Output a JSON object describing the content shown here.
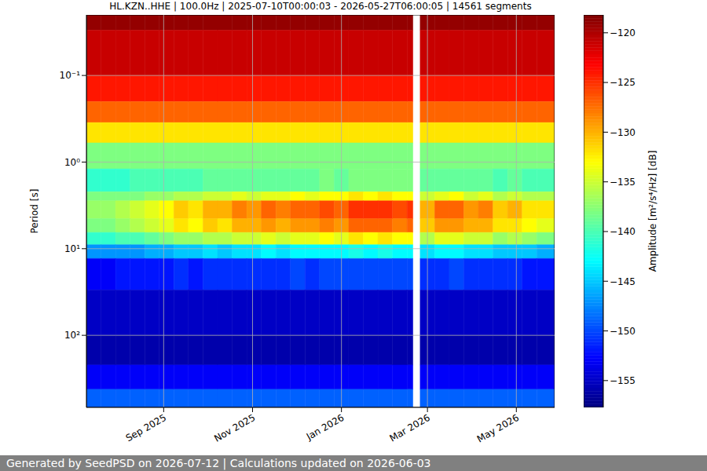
{
  "chart_data": {
    "type": "heatmap",
    "title": "HL.KZN..HHE | 100.0Hz | 2025-07-10T00:00:03 - 2026-05-27T06:00:05 | 14561 segments",
    "y_label": "Period [s]",
    "footer": "Generated by SeedPSD on 2026-07-12 | Calculations updated on 2026-06-03",
    "log": "y",
    "grid": true,
    "xlim": [
      "2025-07-10T00:00:03",
      "2026-05-27T06:00:05"
    ],
    "xticks": [
      {
        "value": "2025-09-01",
        "label": "Sep 2025"
      },
      {
        "value": "2025-11-01",
        "label": "Nov 2025"
      },
      {
        "value": "2026-01-01",
        "label": "Jan 2026"
      },
      {
        "value": "2026-03-01",
        "label": "Mar 2026"
      },
      {
        "value": "2026-05-01",
        "label": "May 2026"
      }
    ],
    "ylim": [
      0.02,
      680
    ],
    "yticks": [
      {
        "value": 0.1,
        "label": "10⁻¹"
      },
      {
        "value": 1,
        "label": "10⁰"
      },
      {
        "value": 10,
        "label": "10¹"
      },
      {
        "value": 100,
        "label": "10²"
      }
    ],
    "x": [
      "2025-07-10",
      "2025-07-20",
      "2025-07-30",
      "2025-08-09",
      "2025-08-19",
      "2025-08-29",
      "2025-09-08",
      "2025-09-18",
      "2025-09-28",
      "2025-10-08",
      "2025-10-18",
      "2025-10-28",
      "2025-11-07",
      "2025-11-17",
      "2025-11-27",
      "2025-12-07",
      "2025-12-17",
      "2025-12-27",
      "2026-01-06",
      "2026-01-16",
      "2026-01-26",
      "2026-02-05",
      "2026-02-15",
      "2026-02-19",
      "2026-02-24",
      "2026-03-06",
      "2026-03-16",
      "2026-03-26",
      "2026-04-05",
      "2026-04-15",
      "2026-04-25",
      "2026-05-05",
      "2026-05-15"
    ],
    "y": [
      0.02,
      0.03,
      0.1,
      0.2,
      0.35,
      0.6,
      1.2,
      2.2,
      2.8,
      4.5,
      6.5,
      9,
      13,
      30,
      100,
      220,
      420
    ],
    "cells": [
      [
        -119,
        -119,
        -119,
        -119,
        -119,
        -119,
        -119,
        -119,
        -119,
        -119,
        -119,
        -119,
        -119,
        -119,
        -119,
        -119,
        -119,
        -119,
        -119,
        -119,
        -119,
        -119,
        -119,
        null,
        -119,
        -119,
        -119,
        -119,
        -119,
        -119,
        -119,
        -119,
        -119
      ],
      [
        -121,
        -121,
        -121,
        -121,
        -121,
        -121,
        -121,
        -121,
        -121,
        -121,
        -121,
        -121,
        -121,
        -121,
        -121,
        -121,
        -121,
        -121,
        -121,
        -121,
        -121,
        -121,
        -121,
        null,
        -121,
        -121,
        -121,
        -121,
        -121,
        -121,
        -121,
        -121,
        -121
      ],
      [
        -124,
        -124,
        -124,
        -124,
        -124,
        -124,
        -124,
        -124,
        -124,
        -124,
        -124,
        -124,
        -124,
        -124,
        -124,
        -124,
        -124,
        -124,
        -124,
        -124,
        -124,
        -124,
        -124,
        null,
        -124,
        -124,
        -124,
        -124,
        -124,
        -124,
        -124,
        -124,
        -124
      ],
      [
        -127,
        -127,
        -127,
        -127,
        -127,
        -127,
        -127,
        -127,
        -127,
        -127,
        -127,
        -127,
        -127,
        -127,
        -127,
        -127,
        -127,
        -127,
        -127,
        -127,
        -127,
        -127,
        -127,
        null,
        -127,
        -127,
        -127,
        -127,
        -127,
        -127,
        -127,
        -127,
        -127
      ],
      [
        -132,
        -132,
        -132,
        -132,
        -132,
        -132,
        -132,
        -132,
        -132,
        -132,
        -132,
        -132,
        -132,
        -132,
        -132,
        -132,
        -132,
        -132,
        -132,
        -132,
        -132,
        -132,
        -132,
        null,
        -132,
        -132,
        -132,
        -132,
        -132,
        -132,
        -132,
        -132,
        -132
      ],
      [
        -138,
        -138,
        -138,
        -138,
        -138,
        -138,
        -138,
        -138,
        -138,
        -138,
        -138,
        -138,
        -138,
        -138,
        -138,
        -138,
        -138,
        -138,
        -138,
        -138,
        -138,
        -138,
        -138,
        null,
        -138,
        -138,
        -138,
        -138,
        -138,
        -138,
        -138,
        -138,
        -138
      ],
      [
        -141,
        -141,
        -141,
        -140,
        -140,
        -140,
        -140,
        -140,
        -139,
        -139,
        -139,
        -139,
        -139,
        -139,
        -139,
        -139,
        -138,
        -139,
        -138,
        -138,
        -138,
        -138,
        -138,
        null,
        -139,
        -139,
        -139,
        -139,
        -139,
        -140,
        -139,
        -140,
        -140
      ],
      [
        -138,
        -138,
        -138,
        -138,
        -137,
        -137,
        -136,
        -136,
        -135,
        -135,
        -134,
        -135,
        -134,
        -134,
        -133,
        -134,
        -133,
        -133,
        -132,
        -133,
        -132,
        -133,
        -133,
        null,
        -135,
        -134,
        -133,
        -135,
        -134,
        -136,
        -135,
        -136,
        -136
      ],
      [
        -137,
        -137,
        -136,
        -135,
        -134,
        -133,
        -131,
        -132,
        -130,
        -130,
        -128,
        -129,
        -127,
        -128,
        -127,
        -127,
        -126,
        -127,
        -125,
        -125,
        -125,
        -126,
        -125,
        null,
        -130,
        -127,
        -127,
        -129,
        -128,
        -131,
        -130,
        -132,
        -132
      ],
      [
        -138,
        -138,
        -137,
        -136,
        -135,
        -134,
        -132,
        -133,
        -131,
        -132,
        -130,
        -130,
        -129,
        -130,
        -129,
        -129,
        -128,
        -129,
        -127,
        -127,
        -127,
        -128,
        -127,
        null,
        -131,
        -129,
        -129,
        -130,
        -130,
        -132,
        -132,
        -133,
        -134
      ],
      [
        -141,
        -141,
        -140,
        -140,
        -139,
        -138,
        -137,
        -137,
        -136,
        -136,
        -135,
        -135,
        -134,
        -135,
        -134,
        -134,
        -133,
        -134,
        -132,
        -133,
        -132,
        -133,
        -133,
        null,
        -136,
        -134,
        -134,
        -135,
        -135,
        -137,
        -136,
        -137,
        -138
      ],
      [
        -147,
        -147,
        -147,
        -147,
        -146,
        -146,
        -145,
        -145,
        -144,
        -145,
        -144,
        -144,
        -143,
        -144,
        -143,
        -143,
        -143,
        -143,
        -142,
        -143,
        -142,
        -143,
        -143,
        null,
        -144,
        -143,
        -143,
        -144,
        -144,
        -145,
        -145,
        -145,
        -146
      ],
      [
        -153,
        -153,
        -152,
        -152,
        -152,
        -152,
        -151,
        -152,
        -151,
        -151,
        -151,
        -151,
        -151,
        -151,
        -150,
        -151,
        -150,
        -150,
        -150,
        -150,
        -150,
        -150,
        -150,
        null,
        -151,
        -151,
        -150,
        -151,
        -151,
        -151,
        -151,
        -152,
        -152
      ],
      [
        -155,
        -155,
        -155,
        -155,
        -155,
        -155,
        -155,
        -155,
        -155,
        -155,
        -155,
        -155,
        -155,
        -155,
        -155,
        -155,
        -155,
        -155,
        -155,
        -155,
        -155,
        -155,
        -155,
        null,
        -155,
        -155,
        -155,
        -155,
        -155,
        -155,
        -155,
        -155,
        -155
      ],
      [
        -156,
        -156,
        -156,
        -156,
        -156,
        -156,
        -156,
        -156,
        -156,
        -156,
        -156,
        -156,
        -156,
        -156,
        -156,
        -156,
        -156,
        -156,
        -156,
        -156,
        -156,
        -156,
        -156,
        null,
        -156,
        -156,
        -156,
        -156,
        -156,
        -156,
        -156,
        -156,
        -156
      ],
      [
        -153,
        -153,
        -153,
        -153,
        -153,
        -153,
        -153,
        -153,
        -153,
        -153,
        -153,
        -153,
        -153,
        -153,
        -153,
        -153,
        -153,
        -153,
        -153,
        -153,
        -153,
        -153,
        -153,
        null,
        -153,
        -153,
        -153,
        -153,
        -153,
        -153,
        -153,
        -153,
        -153
      ],
      [
        -149,
        -149,
        -149,
        -149,
        -149,
        -149,
        -149,
        -149,
        -149,
        -149,
        -149,
        -149,
        -149,
        -149,
        -149,
        -149,
        -149,
        -149,
        -149,
        -149,
        -149,
        -149,
        -149,
        null,
        -149,
        -149,
        -149,
        -149,
        -149,
        -149,
        -149,
        -149,
        -149
      ]
    ],
    "colorbar": {
      "label": "Amplitude [m²/s⁴/Hz] [dB]",
      "range": [
        -157.7,
        -118.2
      ],
      "ticks": [
        {
          "value": -155,
          "label": "−155"
        },
        {
          "value": -150,
          "label": "−150"
        },
        {
          "value": -145,
          "label": "−145"
        },
        {
          "value": -140,
          "label": "−140"
        },
        {
          "value": -135,
          "label": "−135"
        },
        {
          "value": -130,
          "label": "−130"
        },
        {
          "value": -125,
          "label": "−125"
        },
        {
          "value": -120,
          "label": "−120"
        }
      ]
    }
  }
}
